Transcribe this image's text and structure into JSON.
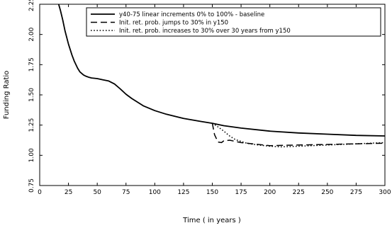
{
  "chart_data": {
    "type": "line",
    "xlabel": "Time ( in years )",
    "ylabel": "Funding Ratio",
    "xlim": [
      0,
      300
    ],
    "ylim": [
      0.75,
      2.25
    ],
    "xticks": [
      0,
      25,
      50,
      75,
      100,
      125,
      150,
      175,
      200,
      225,
      250,
      275,
      300
    ],
    "yticks": [
      0.75,
      1.0,
      1.25,
      1.5,
      1.75,
      2.0,
      2.25
    ],
    "ytick_labels": [
      "0.75",
      "1.00",
      "1.25",
      "1.50",
      "1.75",
      "2.00",
      "2.25"
    ],
    "grid": false,
    "legend_position": "top-right",
    "series": [
      {
        "name": "y40-75 linear increments 0% to 100% - baseline",
        "style": "solid",
        "color": "#000000",
        "x": [
          15,
          18,
          20,
          22,
          25,
          28,
          30,
          33,
          35,
          38,
          40,
          43,
          45,
          50,
          55,
          60,
          65,
          70,
          75,
          80,
          90,
          100,
          110,
          125,
          140,
          150,
          160,
          175,
          200,
          225,
          250,
          275,
          300
        ],
        "y": [
          2.3,
          2.2,
          2.12,
          2.03,
          1.92,
          1.83,
          1.78,
          1.72,
          1.69,
          1.665,
          1.655,
          1.645,
          1.64,
          1.635,
          1.625,
          1.615,
          1.59,
          1.55,
          1.505,
          1.47,
          1.41,
          1.37,
          1.34,
          1.305,
          1.28,
          1.265,
          1.245,
          1.225,
          1.2,
          1.185,
          1.175,
          1.165,
          1.16
        ]
      },
      {
        "name": "Init. ret. prob. jumps to 30% in y150",
        "style": "dashed",
        "color": "#000000",
        "x": [
          150,
          152,
          155,
          158,
          160,
          165,
          170,
          175,
          185,
          200,
          225,
          250,
          275,
          300
        ],
        "y": [
          1.265,
          1.17,
          1.11,
          1.105,
          1.12,
          1.125,
          1.115,
          1.105,
          1.095,
          1.08,
          1.085,
          1.09,
          1.095,
          1.1
        ]
      },
      {
        "name": "Init. ret. prob. increases to 30% over 30 years from y150",
        "style": "dotted",
        "color": "#000000",
        "x": [
          150,
          155,
          160,
          165,
          170,
          175,
          180,
          190,
          200,
          210,
          225,
          250,
          275,
          300
        ],
        "y": [
          1.265,
          1.235,
          1.2,
          1.16,
          1.13,
          1.115,
          1.1,
          1.085,
          1.075,
          1.07,
          1.075,
          1.085,
          1.095,
          1.105
        ]
      }
    ]
  }
}
